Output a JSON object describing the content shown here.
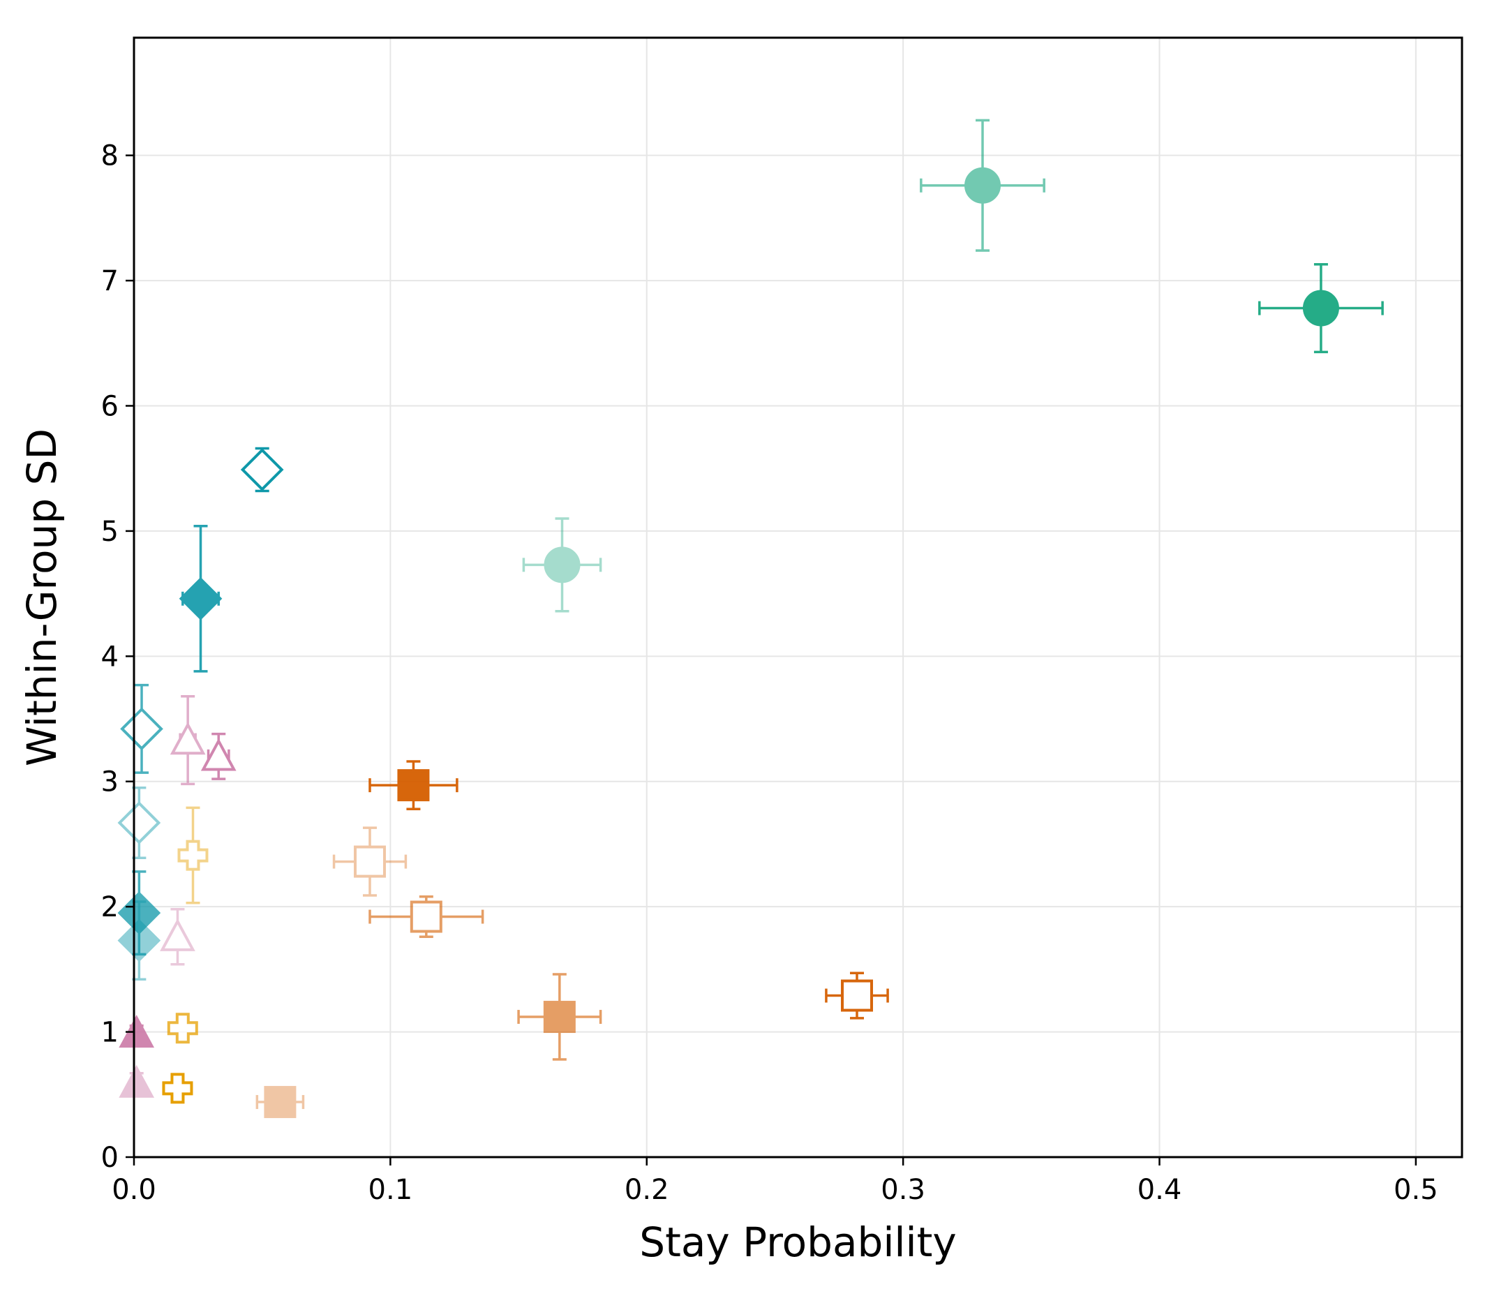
{
  "chart_data": {
    "type": "scatter",
    "title": "",
    "xlabel": "Stay Probability",
    "ylabel": "Within-Group SD",
    "xlim": [
      0,
      0.518
    ],
    "ylim": [
      0,
      8.94
    ],
    "xticks": [
      0,
      0.1,
      0.2,
      0.3,
      0.4,
      0.5
    ],
    "xtick_labels": [
      "0.0",
      "0.1",
      "0.2",
      "0.3",
      "0.4",
      "0.5"
    ],
    "yticks": [
      0,
      1,
      2,
      3,
      4,
      5,
      6,
      7,
      8
    ],
    "ytick_labels": [
      "0",
      "1",
      "2",
      "3",
      "4",
      "5",
      "6",
      "7",
      "8"
    ],
    "grid": true,
    "legend": "none",
    "points": [
      {
        "x": 0.331,
        "y": 7.76,
        "xerr": 0.024,
        "yerr": 0.52,
        "marker": "circle",
        "filled": true,
        "color": "#009E73",
        "alpha": 0.55
      },
      {
        "x": 0.463,
        "y": 6.78,
        "xerr": 0.024,
        "yerr": 0.35,
        "marker": "circle",
        "filled": true,
        "color": "#009E73",
        "alpha": 0.85
      },
      {
        "x": 0.167,
        "y": 4.73,
        "xerr": 0.015,
        "yerr": 0.37,
        "marker": "circle",
        "filled": true,
        "color": "#009E73",
        "alpha": 0.35
      },
      {
        "x": 0.05,
        "y": 5.49,
        "xerr": 0.003,
        "yerr": 0.17,
        "marker": "diamond",
        "filled": false,
        "color": "#0E98A9",
        "alpha": 1.0
      },
      {
        "x": 0.026,
        "y": 4.46,
        "xerr": 0.007,
        "yerr": 0.58,
        "marker": "diamond",
        "filled": true,
        "color": "#0E98A9",
        "alpha": 0.9
      },
      {
        "x": 0.003,
        "y": 3.42,
        "xerr": 0.003,
        "yerr": 0.35,
        "marker": "diamond",
        "filled": false,
        "color": "#0E98A9",
        "alpha": 0.75
      },
      {
        "x": 0.002,
        "y": 2.67,
        "xerr": 0.002,
        "yerr": 0.28,
        "marker": "diamond",
        "filled": false,
        "color": "#0E98A9",
        "alpha": 0.45
      },
      {
        "x": 0.002,
        "y": 1.95,
        "xerr": 0.002,
        "yerr": 0.33,
        "marker": "diamond",
        "filled": true,
        "color": "#0E98A9",
        "alpha": 0.75
      },
      {
        "x": 0.002,
        "y": 1.73,
        "xerr": 0.002,
        "yerr": 0.31,
        "marker": "diamond",
        "filled": true,
        "color": "#0E98A9",
        "alpha": 0.45
      },
      {
        "x": 0.021,
        "y": 3.33,
        "xerr": 0.003,
        "yerr": 0.35,
        "marker": "triangle",
        "filled": false,
        "color": "#CC79A7",
        "alpha": 0.6
      },
      {
        "x": 0.033,
        "y": 3.2,
        "xerr": 0.004,
        "yerr": 0.18,
        "marker": "triangle",
        "filled": false,
        "color": "#CC79A7",
        "alpha": 0.9
      },
      {
        "x": 0.017,
        "y": 1.76,
        "xerr": 0.002,
        "yerr": 0.22,
        "marker": "triangle",
        "filled": false,
        "color": "#CC79A7",
        "alpha": 0.4
      },
      {
        "x": 0.001,
        "y": 0.99,
        "xerr": 0.001,
        "yerr": 0.06,
        "marker": "triangle",
        "filled": true,
        "color": "#CC79A7",
        "alpha": 0.9
      },
      {
        "x": 0.001,
        "y": 0.59,
        "xerr": 0.001,
        "yerr": 0.08,
        "marker": "triangle",
        "filled": true,
        "color": "#CC79A7",
        "alpha": 0.45
      },
      {
        "x": 0.023,
        "y": 2.41,
        "xerr": 0.003,
        "yerr": 0.38,
        "marker": "plus",
        "filled": false,
        "color": "#E69F00",
        "alpha": 0.45
      },
      {
        "x": 0.019,
        "y": 1.03,
        "xerr": 0.002,
        "yerr": 0.04,
        "marker": "plus",
        "filled": false,
        "color": "#E69F00",
        "alpha": 0.75
      },
      {
        "x": 0.017,
        "y": 0.55,
        "xerr": 0.002,
        "yerr": 0.05,
        "marker": "plus",
        "filled": false,
        "color": "#E69F00",
        "alpha": 1.0
      },
      {
        "x": 0.109,
        "y": 2.97,
        "xerr": 0.017,
        "yerr": 0.19,
        "marker": "square",
        "filled": true,
        "color": "#D55E00",
        "alpha": 0.95
      },
      {
        "x": 0.092,
        "y": 2.36,
        "xerr": 0.014,
        "yerr": 0.27,
        "marker": "square",
        "filled": false,
        "color": "#D55E00",
        "alpha": 0.35
      },
      {
        "x": 0.114,
        "y": 1.92,
        "xerr": 0.022,
        "yerr": 0.16,
        "marker": "square",
        "filled": false,
        "color": "#D55E00",
        "alpha": 0.6
      },
      {
        "x": 0.166,
        "y": 1.12,
        "xerr": 0.016,
        "yerr": 0.34,
        "marker": "square",
        "filled": true,
        "color": "#D55E00",
        "alpha": 0.6
      },
      {
        "x": 0.282,
        "y": 1.29,
        "xerr": 0.012,
        "yerr": 0.18,
        "marker": "square",
        "filled": false,
        "color": "#D55E00",
        "alpha": 0.95
      },
      {
        "x": 0.057,
        "y": 0.44,
        "xerr": 0.009,
        "yerr": 0.06,
        "marker": "square",
        "filled": true,
        "color": "#D55E00",
        "alpha": 0.35
      }
    ]
  }
}
